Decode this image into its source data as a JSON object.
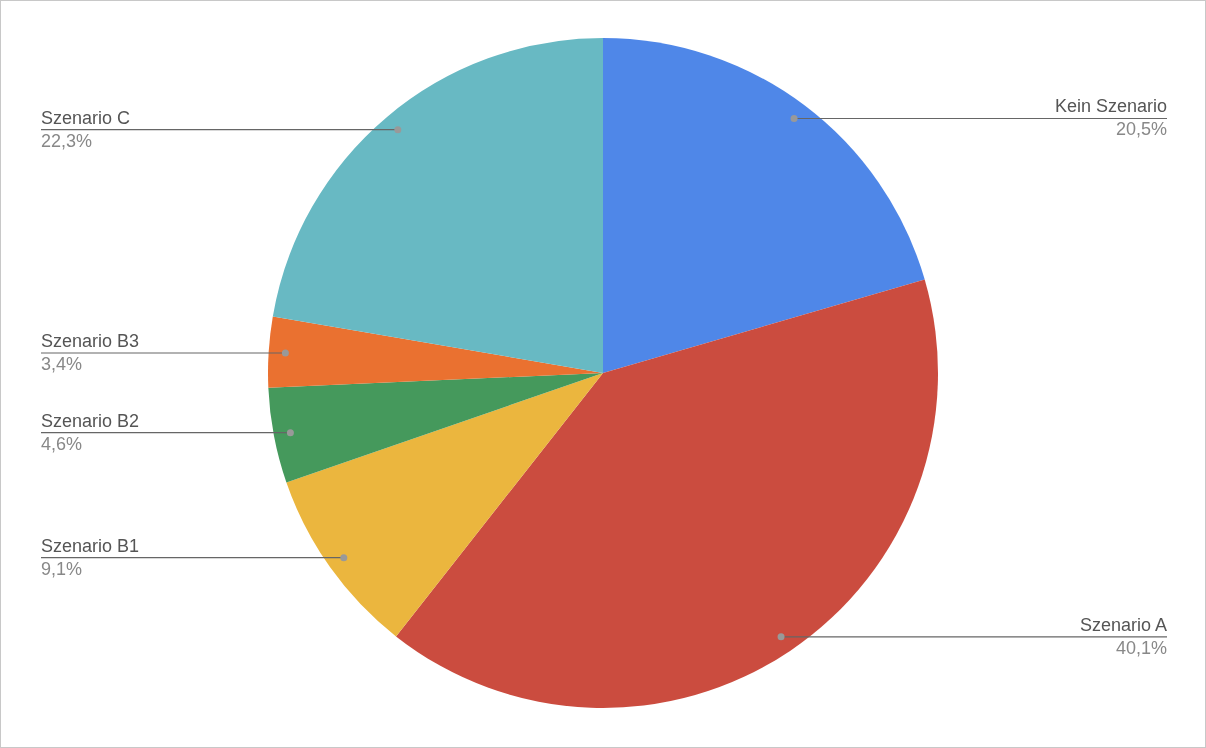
{
  "chart_data": {
    "type": "pie",
    "categories": [
      "Kein Szenario",
      "Szenario A",
      "Szenario B1",
      "Szenario B2",
      "Szenario B3",
      "Szenario C"
    ],
    "values": [
      20.5,
      40.1,
      9.1,
      4.6,
      3.4,
      22.3
    ],
    "colors": [
      "#4f87e8",
      "#cb4c3f",
      "#ebb63e",
      "#45995c",
      "#ea7130",
      "#68b9c3"
    ],
    "value_labels": [
      "20,5%",
      "40,1%",
      "9,1%",
      "4,6%",
      "3,4%",
      "22,3%"
    ],
    "legend": false
  }
}
